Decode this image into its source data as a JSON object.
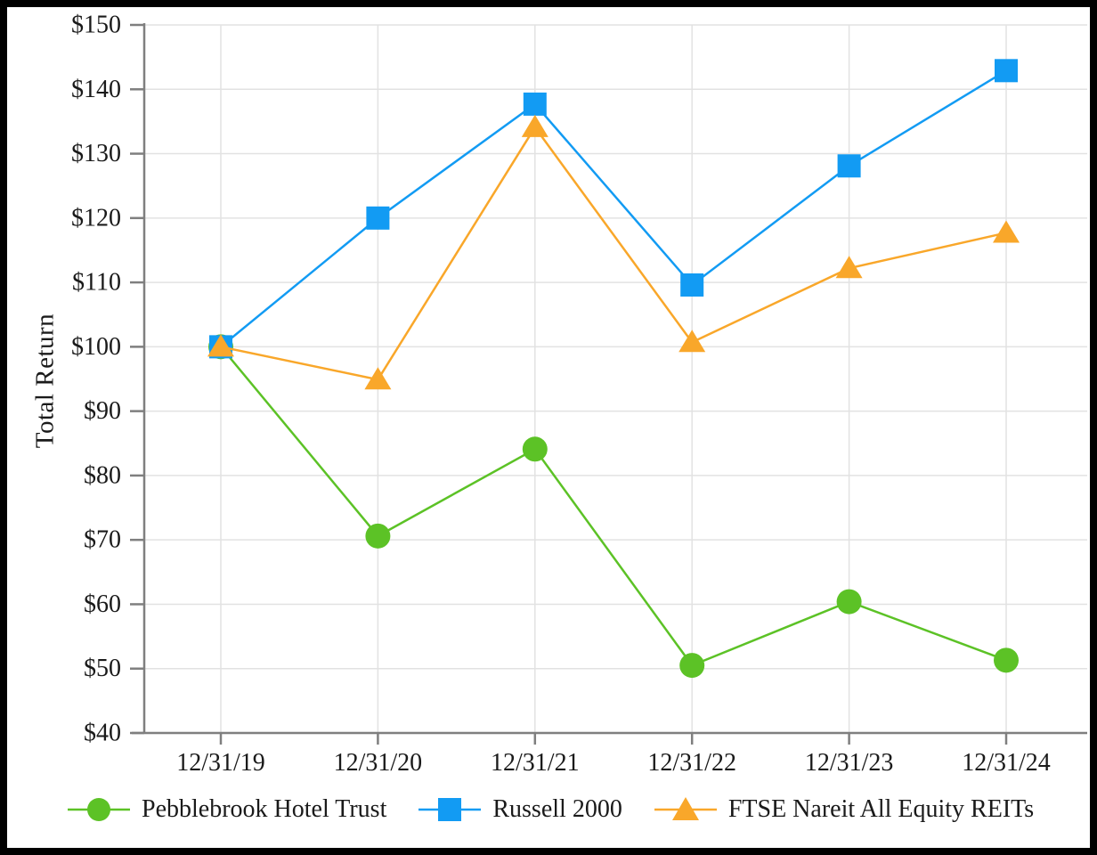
{
  "chart_data": {
    "type": "line",
    "title": "",
    "ylabel": "Total Return",
    "xlabel": "",
    "categories": [
      "12/31/19",
      "12/31/20",
      "12/31/21",
      "12/31/22",
      "12/31/23",
      "12/31/24"
    ],
    "y_tick_labels": [
      "$150",
      "$140",
      "$130",
      "$120",
      "$110",
      "$100",
      "$90",
      "$80",
      "$70",
      "$60",
      "$50",
      "$40"
    ],
    "y_tick_values": [
      150,
      140,
      130,
      120,
      110,
      100,
      90,
      80,
      70,
      60,
      50,
      40
    ],
    "ylim": [
      40,
      150
    ],
    "grid": true,
    "legend_position": "bottom",
    "series": [
      {
        "name": "Pebblebrook Hotel Trust",
        "marker": "circle",
        "color": "#5CC226",
        "values": [
          100,
          70.6,
          84.1,
          50.5,
          60.4,
          51.3
        ]
      },
      {
        "name": "Russell 2000",
        "marker": "square",
        "color": "#129BF3",
        "values": [
          100,
          120.0,
          137.7,
          109.6,
          128.1,
          142.9
        ]
      },
      {
        "name": "FTSE Nareit All Equity REITs",
        "marker": "triangle",
        "color": "#F9A72A",
        "values": [
          100,
          94.9,
          134.1,
          100.7,
          112.2,
          117.7
        ]
      }
    ]
  },
  "style": {
    "gridline_color": "#E2E2E2",
    "axis_color": "#7F7F7F",
    "text_color": "#1a1a1a",
    "frame_color": "#000000"
  }
}
